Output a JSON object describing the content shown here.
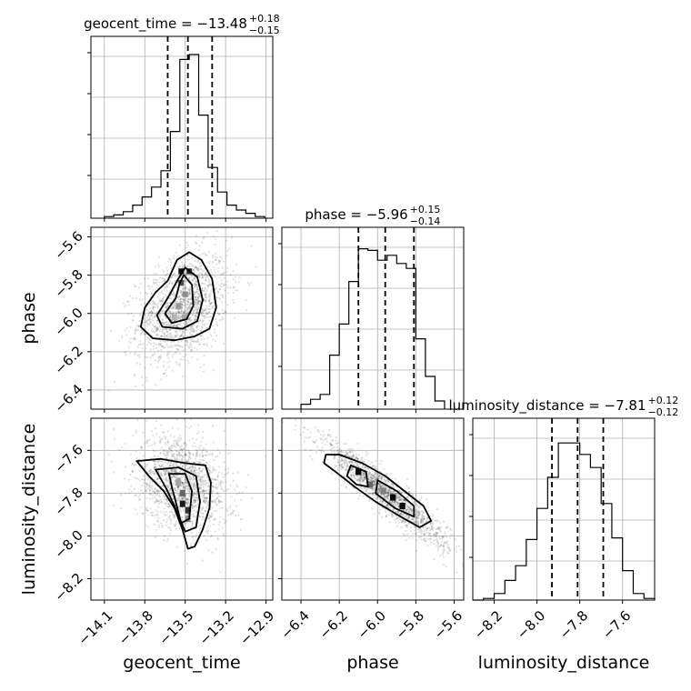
{
  "chart_data": {
    "type": "corner",
    "parameters": [
      "geocent_time",
      "phase",
      "luminosity_distance"
    ],
    "ranges": {
      "geocent_time": [
        -14.2,
        -12.85
      ],
      "phase": [
        -6.5,
        -5.55
      ],
      "luminosity_distance": [
        -8.3,
        -7.45
      ]
    },
    "ticks": {
      "geocent_time": {
        "values": [
          -14.1,
          -13.8,
          -13.5,
          -13.2,
          -12.9
        ],
        "labels": [
          "−14.1",
          "−13.8",
          "−13.5",
          "−13.2",
          "−12.9"
        ]
      },
      "phase": {
        "values": [
          -6.4,
          -6.2,
          -6.0,
          -5.8,
          -5.6
        ],
        "labels": [
          "−6.4",
          "−6.2",
          "−6.0",
          "−5.8",
          "−5.6"
        ]
      },
      "luminosity_distance": {
        "values": [
          -8.2,
          -8.0,
          -7.8,
          -7.6
        ],
        "labels": [
          "−8.2",
          "−8.0",
          "−7.8",
          "−7.6"
        ]
      }
    },
    "titles": {
      "geocent_time": {
        "prefix": "geocent_time = −13.48",
        "plus": "+0.18",
        "minus": "−0.15"
      },
      "phase": {
        "prefix": "phase = −5.96",
        "plus": "+0.15",
        "minus": "−0.14"
      },
      "luminosity_distance": {
        "prefix": "luminosity_distance = −7.81",
        "plus": "+0.12",
        "minus": "−0.12"
      }
    },
    "quantiles": {
      "geocent_time": [
        -13.63,
        -13.48,
        -13.3
      ],
      "phase": [
        -6.1,
        -5.96,
        -5.81
      ],
      "luminosity_distance": [
        -7.93,
        -7.81,
        -7.69
      ]
    },
    "histograms": {
      "geocent_time": {
        "edges": [
          -14.1,
          -14.03,
          -13.96,
          -13.89,
          -13.82,
          -13.75,
          -13.68,
          -13.61,
          -13.54,
          -13.47,
          -13.4,
          -13.33,
          -13.26,
          -13.19,
          -13.12,
          -13.05,
          -12.98,
          -12.91
        ],
        "counts": [
          0.01,
          0.02,
          0.04,
          0.08,
          0.13,
          0.19,
          0.29,
          0.53,
          0.97,
          1.0,
          0.63,
          0.31,
          0.16,
          0.08,
          0.05,
          0.03,
          0.01
        ]
      },
      "phase": {
        "edges": [
          -6.4,
          -6.35,
          -6.3,
          -6.25,
          -6.2,
          -6.15,
          -6.1,
          -6.05,
          -6.0,
          -5.95,
          -5.9,
          -5.85,
          -5.8,
          -5.75,
          -5.7,
          -5.65
        ],
        "counts": [
          0.03,
          0.06,
          0.09,
          0.33,
          0.52,
          0.78,
          0.98,
          0.97,
          0.91,
          0.94,
          0.89,
          0.86,
          0.43,
          0.2,
          0.05
        ]
      },
      "luminosity_distance": {
        "edges": [
          -8.3,
          -8.25,
          -8.2,
          -8.15,
          -8.1,
          -8.05,
          -8.0,
          -7.95,
          -7.9,
          -7.85,
          -7.8,
          -7.75,
          -7.7,
          -7.65,
          -7.6,
          -7.55,
          -7.5,
          -7.45
        ],
        "counts": [
          0.0,
          0.01,
          0.04,
          0.12,
          0.21,
          0.37,
          0.56,
          0.75,
          0.96,
          0.96,
          0.89,
          0.81,
          0.59,
          0.38,
          0.18,
          0.04,
          0.01
        ]
      }
    },
    "pairs": [
      {
        "x": "geocent_time",
        "y": "phase",
        "center": [
          -13.52,
          -5.97
        ],
        "spread": [
          0.17,
          0.14
        ],
        "rho": 0.35,
        "contours": [
          [
            [
              -13.47,
              -5.68
            ],
            [
              -13.38,
              -5.72
            ],
            [
              -13.3,
              -5.82
            ],
            [
              -13.27,
              -5.97
            ],
            [
              -13.32,
              -6.08
            ],
            [
              -13.43,
              -6.12
            ],
            [
              -13.58,
              -6.14
            ],
            [
              -13.74,
              -6.13
            ],
            [
              -13.83,
              -6.07
            ],
            [
              -13.8,
              -5.97
            ],
            [
              -13.72,
              -5.89
            ],
            [
              -13.63,
              -5.83
            ],
            [
              -13.56,
              -5.72
            ]
          ],
          [
            [
              -13.5,
              -5.76
            ],
            [
              -13.41,
              -5.81
            ],
            [
              -13.37,
              -5.93
            ],
            [
              -13.41,
              -6.04
            ],
            [
              -13.52,
              -6.08
            ],
            [
              -13.67,
              -6.07
            ],
            [
              -13.71,
              -6.01
            ],
            [
              -13.63,
              -5.92
            ],
            [
              -13.56,
              -5.83
            ]
          ],
          [
            [
              -13.51,
              -5.8
            ],
            [
              -13.45,
              -5.85
            ],
            [
              -13.44,
              -5.96
            ],
            [
              -13.49,
              -6.03
            ],
            [
              -13.6,
              -6.05
            ],
            [
              -13.65,
              -6.0
            ],
            [
              -13.57,
              -5.92
            ],
            [
              -13.54,
              -5.84
            ]
          ]
        ],
        "pixels": [
          {
            "x": -13.53,
            "y": -5.78,
            "w": 0.04,
            "h": 0.03,
            "d": 0.95
          },
          {
            "x": -13.47,
            "y": -5.78,
            "w": 0.04,
            "h": 0.03,
            "d": 0.85
          },
          {
            "x": -13.53,
            "y": -5.84,
            "w": 0.04,
            "h": 0.03,
            "d": 0.7
          },
          {
            "x": -13.5,
            "y": -5.9,
            "w": 0.04,
            "h": 0.03,
            "d": 0.45
          },
          {
            "x": -13.55,
            "y": -5.96,
            "w": 0.04,
            "h": 0.03,
            "d": 0.4
          },
          {
            "x": -13.5,
            "y": -6.02,
            "w": 0.05,
            "h": 0.03,
            "d": 0.35
          },
          {
            "x": -13.58,
            "y": -6.02,
            "w": 0.04,
            "h": 0.03,
            "d": 0.3
          }
        ]
      },
      {
        "x": "geocent_time",
        "y": "luminosity_distance",
        "center": [
          -13.52,
          -7.76
        ],
        "spread": [
          0.17,
          0.11
        ],
        "rho": -0.25,
        "contours": [
          [
            [
              -13.86,
              -7.65
            ],
            [
              -13.68,
              -7.64
            ],
            [
              -13.5,
              -7.66
            ],
            [
              -13.35,
              -7.67
            ],
            [
              -13.31,
              -7.75
            ],
            [
              -13.32,
              -7.87
            ],
            [
              -13.37,
              -7.97
            ],
            [
              -13.43,
              -8.05
            ],
            [
              -13.48,
              -8.06
            ],
            [
              -13.52,
              -7.97
            ],
            [
              -13.58,
              -7.87
            ],
            [
              -13.66,
              -7.79
            ],
            [
              -13.77,
              -7.72
            ]
          ],
          [
            [
              -13.72,
              -7.69
            ],
            [
              -13.55,
              -7.68
            ],
            [
              -13.42,
              -7.72
            ],
            [
              -13.39,
              -7.84
            ],
            [
              -13.42,
              -7.96
            ],
            [
              -13.5,
              -7.98
            ],
            [
              -13.58,
              -7.86
            ],
            [
              -13.64,
              -7.78
            ]
          ],
          [
            [
              -13.62,
              -7.71
            ],
            [
              -13.5,
              -7.71
            ],
            [
              -13.45,
              -7.79
            ],
            [
              -13.47,
              -7.92
            ],
            [
              -13.53,
              -7.94
            ],
            [
              -13.57,
              -7.84
            ],
            [
              -13.6,
              -7.77
            ]
          ]
        ],
        "pixels": [
          {
            "x": -13.52,
            "y": -7.85,
            "w": 0.04,
            "h": 0.03,
            "d": 0.9
          },
          {
            "x": -13.48,
            "y": -7.88,
            "w": 0.04,
            "h": 0.03,
            "d": 0.8
          },
          {
            "x": -13.52,
            "y": -7.8,
            "w": 0.04,
            "h": 0.03,
            "d": 0.6
          },
          {
            "x": -13.55,
            "y": -7.75,
            "w": 0.04,
            "h": 0.03,
            "d": 0.35
          },
          {
            "x": -13.48,
            "y": -7.92,
            "w": 0.04,
            "h": 0.03,
            "d": 0.45
          }
        ]
      },
      {
        "x": "phase",
        "y": "luminosity_distance",
        "center": [
          -5.96,
          -7.8
        ],
        "spread": [
          0.16,
          0.12
        ],
        "rho": -0.93,
        "contours": [
          [
            [
              -6.27,
              -7.62
            ],
            [
              -6.2,
              -7.62
            ],
            [
              -6.08,
              -7.66
            ],
            [
              -5.96,
              -7.72
            ],
            [
              -5.86,
              -7.79
            ],
            [
              -5.76,
              -7.86
            ],
            [
              -5.72,
              -7.93
            ],
            [
              -5.78,
              -7.96
            ],
            [
              -5.88,
              -7.91
            ],
            [
              -6.01,
              -7.84
            ],
            [
              -6.12,
              -7.77
            ],
            [
              -6.22,
              -7.7
            ],
            [
              -6.28,
              -7.66
            ]
          ],
          [
            [
              -6.14,
              -7.67
            ],
            [
              -6.06,
              -7.7
            ],
            [
              -6.05,
              -7.77
            ],
            [
              -6.11,
              -7.76
            ],
            [
              -6.16,
              -7.72
            ]
          ],
          [
            [
              -6.0,
              -7.74
            ],
            [
              -5.9,
              -7.79
            ],
            [
              -5.81,
              -7.86
            ],
            [
              -5.81,
              -7.91
            ],
            [
              -5.91,
              -7.87
            ],
            [
              -6.01,
              -7.8
            ]
          ]
        ],
        "pixels": [
          {
            "x": -6.1,
            "y": -7.7,
            "w": 0.03,
            "h": 0.03,
            "d": 0.95
          },
          {
            "x": -6.04,
            "y": -7.76,
            "w": 0.03,
            "h": 0.03,
            "d": 0.6
          },
          {
            "x": -5.92,
            "y": -7.82,
            "w": 0.03,
            "h": 0.03,
            "d": 0.95
          },
          {
            "x": -5.87,
            "y": -7.86,
            "w": 0.03,
            "h": 0.03,
            "d": 0.95
          },
          {
            "x": -5.97,
            "y": -7.79,
            "w": 0.03,
            "h": 0.03,
            "d": 0.5
          }
        ]
      }
    ],
    "grid": true
  }
}
